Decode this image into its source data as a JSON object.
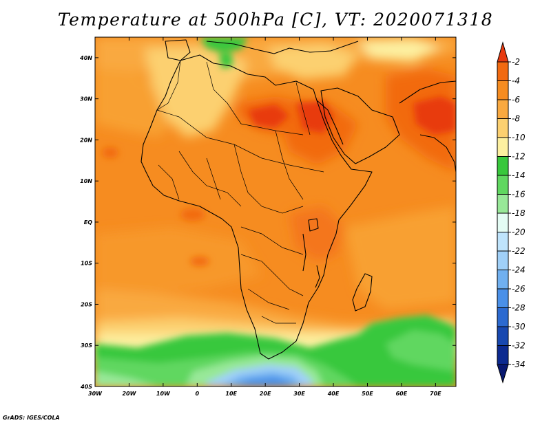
{
  "title": "Temperature at 500hPa [C], VT: 2020071318",
  "credit": "GrADS: IGES/COLA",
  "lat_labels": [
    "40N",
    "30N",
    "20N",
    "10N",
    "EQ",
    "10S",
    "20S",
    "30S",
    "40S"
  ],
  "lon_labels": [
    "30W",
    "20W",
    "10W",
    "0",
    "10E",
    "20E",
    "30E",
    "40E",
    "50E",
    "60E",
    "70E"
  ],
  "extent": {
    "lon": [
      -30,
      76
    ],
    "lat": [
      -40,
      45
    ]
  },
  "colorbar": {
    "levels": [
      "-2",
      "-4",
      "-6",
      "-8",
      "-10",
      "-12",
      "-14",
      "-16",
      "-18",
      "-20",
      "-22",
      "-24",
      "-26",
      "-28",
      "-30",
      "-32",
      "-34"
    ],
    "colors": [
      "#e83a10",
      "#f26a10",
      "#f68c20",
      "#f9a940",
      "#fcd070",
      "#fdf0a0",
      "#38c83c",
      "#60d760",
      "#98e898",
      "#e4fcf4",
      "#bfe4fc",
      "#a0d0f8",
      "#70b0f0",
      "#4a90e8",
      "#2c6ad0",
      "#1848b0",
      "#0c2a90",
      "#081870"
    ]
  }
}
